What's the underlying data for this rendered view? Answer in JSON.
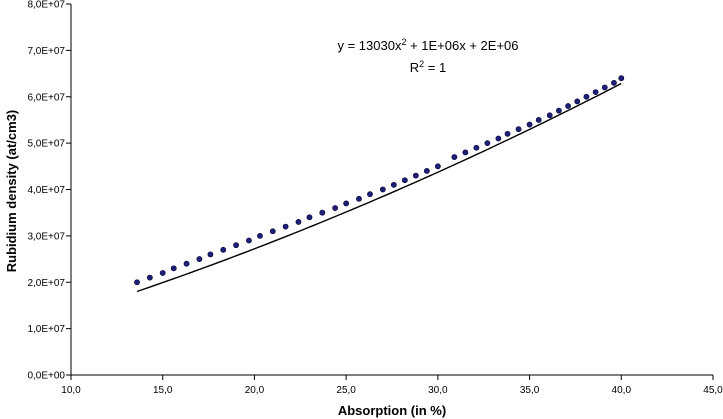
{
  "chart_data": {
    "type": "scatter",
    "xlabel": "Absorption (in %)",
    "ylabel": "Rubidium density (at/cm3)",
    "xlim": [
      10,
      45
    ],
    "ylim": [
      0,
      80000000
    ],
    "x_ticks": [
      "10,0",
      "15,0",
      "20,0",
      "25,0",
      "30,0",
      "35,0",
      "40,0",
      "45,0"
    ],
    "y_ticks": [
      "0,0E+00",
      "1,0E+07",
      "2,0E+07",
      "3,0E+07",
      "4,0E+07",
      "5,0E+07",
      "6,0E+07",
      "7,0E+07",
      "8,0E+07"
    ],
    "grid": false,
    "legend": "none",
    "annotation": {
      "equation_prefix": "y = 13030x",
      "equation_sup": "2",
      "equation_suffix": " + 1E+06x + 2E+06",
      "r2_prefix": "R",
      "r2_sup": "2",
      "r2_suffix": " = 1"
    },
    "trendline": {
      "a": 13030,
      "b": 1000000,
      "c": 2000000
    },
    "series": [
      {
        "marker_color": "#1f1f7a",
        "line_color": "#000000",
        "x": [
          13.6,
          14.3,
          15.0,
          15.6,
          16.3,
          17.0,
          17.6,
          18.3,
          19.0,
          19.7,
          20.3,
          21.0,
          21.7,
          22.4,
          23.0,
          23.7,
          24.4,
          25.0,
          25.7,
          26.3,
          27.0,
          27.6,
          28.2,
          28.8,
          29.4,
          30.0,
          30.9,
          31.5,
          32.1,
          32.7,
          33.3,
          33.8,
          34.4,
          35.0,
          35.5,
          36.1,
          36.6,
          37.1,
          37.6,
          38.1,
          38.6,
          39.1,
          39.6,
          40.0
        ],
        "y": [
          20000000,
          21000000,
          22000000,
          23000000,
          24000000,
          25000000,
          26000000,
          27000000,
          28000000,
          29000000,
          30000000,
          31000000,
          32000000,
          33000000,
          34000000,
          35000000,
          36000000,
          37000000,
          38000000,
          39000000,
          40000000,
          41000000,
          42000000,
          43000000,
          44000000,
          45000000,
          47000000,
          48000000,
          49000000,
          50000000,
          51000000,
          52000000,
          53000000,
          54000000,
          55000000,
          56000000,
          57000000,
          58000000,
          59000000,
          60000000,
          61000000,
          62000000,
          63000000,
          64000000
        ]
      }
    ]
  }
}
